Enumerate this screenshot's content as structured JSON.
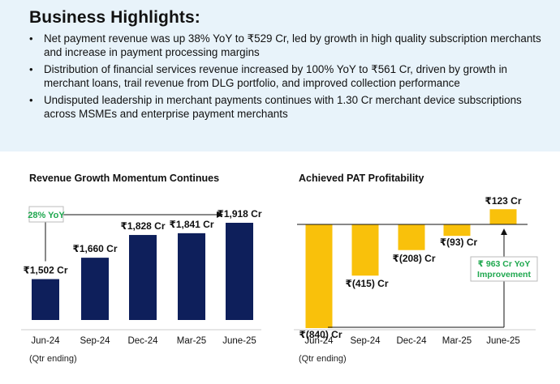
{
  "highlights": {
    "title": "Business Highlights:",
    "bullets": [
      "Net payment revenue was up 38% YoY to ₹529 Cr, led by growth in high quality subscription merchants and increase in payment processing margins",
      "Distribution of financial services revenue increased by 100% YoY to ₹561 Cr, driven by growth in merchant loans, trail revenue from DLG portfolio, and improved collection performance",
      "Undisputed leadership in merchant payments continues with 1.30 Cr merchant device subscriptions across MSMEs and enterprise payment merchants"
    ]
  },
  "chart_data": [
    {
      "type": "bar",
      "title": "Revenue Growth Momentum Continues",
      "categories": [
        "Jun-24",
        "Sep-24",
        "Dec-24",
        "Mar-25",
        "June-25"
      ],
      "values": [
        1502,
        1660,
        1828,
        1841,
        1918
      ],
      "value_labels": [
        "₹1,502 Cr",
        "₹1,660 Cr",
        "₹1,828 Cr",
        "₹1,841 Cr",
        "₹1,918 Cr"
      ],
      "annotation": "28% YoY",
      "footnote": "(Qtr ending)",
      "ylim": [
        1200,
        2000
      ],
      "colors": {
        "bar": "#0e1f5b",
        "annotation_text": "#1fa84f"
      }
    },
    {
      "type": "bar",
      "title": "Achieved PAT Profitability",
      "categories": [
        "Jun-24",
        "Sep-24",
        "Dec-24",
        "Mar-25",
        "June-25"
      ],
      "values": [
        -840,
        -415,
        -208,
        -93,
        123
      ],
      "value_labels": [
        "₹(840) Cr",
        "₹(415) Cr",
        "₹(208) Cr",
        "₹(93) Cr",
        "₹123 Cr"
      ],
      "annotation": "₹ 963 Cr YoY Improvement",
      "annotation_lines": [
        "₹ 963 Cr YoY",
        "Improvement"
      ],
      "footnote": "(Qtr ending)",
      "ylim": [
        -840,
        123
      ],
      "colors": {
        "bar": "#f9c10b",
        "annotation_text": "#1fa84f"
      }
    }
  ]
}
